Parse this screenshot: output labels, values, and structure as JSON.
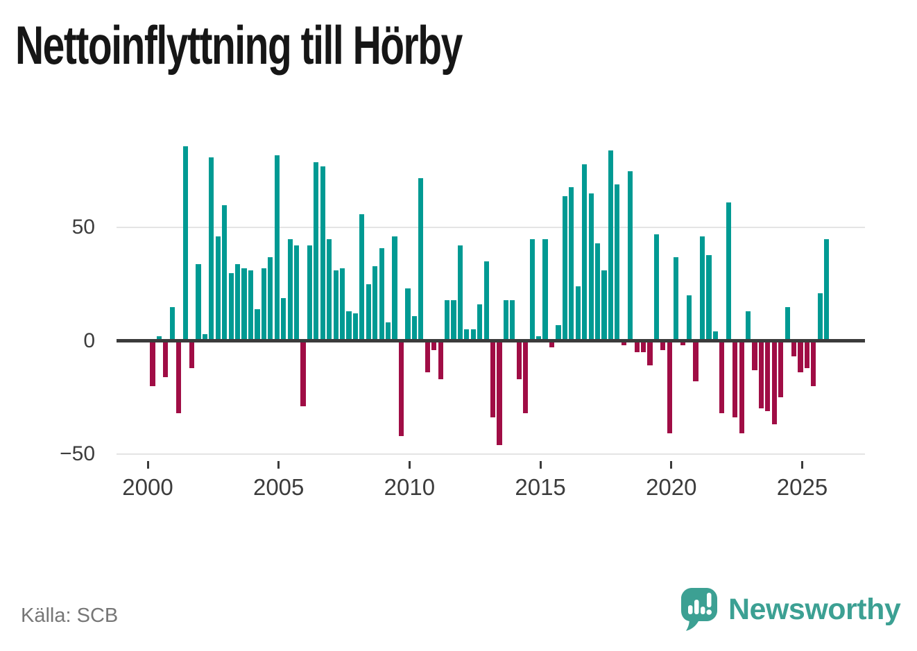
{
  "title": "Nettoinflyttning till Hörby",
  "source": "Källa: SCB",
  "branding": {
    "logo_text": "Newsworthy",
    "logo_color": "#3ca093"
  },
  "chart_data": {
    "type": "bar",
    "title": "Nettoinflyttning till Hörby",
    "frequency": "quarterly",
    "start_period": "2000-Q1",
    "end_period": "2025-Q4",
    "unit": "persons (net migration per quarter)",
    "values": [
      -20,
      2,
      -16,
      15,
      -32,
      86,
      -12,
      34,
      3,
      81,
      46,
      60,
      30,
      34,
      32,
      31,
      14,
      32,
      37,
      82,
      19,
      45,
      42,
      -29,
      42,
      79,
      77,
      45,
      31,
      32,
      13,
      12,
      56,
      25,
      33,
      41,
      8,
      46,
      -42,
      23,
      11,
      72,
      -14,
      -4,
      -17,
      18,
      18,
      42,
      5,
      5,
      16,
      35,
      -34,
      -46,
      18,
      18,
      -17,
      -32,
      45,
      2,
      45,
      -3,
      7,
      64,
      68,
      24,
      78,
      65,
      43,
      31,
      84,
      69,
      -2,
      75,
      -5,
      -5,
      -11,
      47,
      -4,
      -41,
      37,
      -2,
      20,
      -18,
      46,
      38,
      4,
      -32,
      61,
      -34,
      -41,
      13,
      -13,
      -30,
      -31,
      -37,
      -25,
      15,
      -7,
      -14,
      -12,
      -20,
      21,
      45
    ],
    "y_ticks": [
      {
        "label": "50",
        "value": 50
      },
      {
        "label": "0",
        "value": 0
      },
      {
        "label": "−50",
        "value": -50
      }
    ],
    "x_ticks": [
      {
        "label": "2000",
        "year": 2000
      },
      {
        "label": "2005",
        "year": 2005
      },
      {
        "label": "2010",
        "year": 2010
      },
      {
        "label": "2015",
        "year": 2015
      },
      {
        "label": "2020",
        "year": 2020
      },
      {
        "label": "2025",
        "year": 2025
      }
    ],
    "grid_values": [
      50,
      -50
    ],
    "ylim": [
      -51,
      105
    ],
    "colors": {
      "positive": "#009a93",
      "negative": "#a00d45"
    },
    "legend": "none",
    "grid": "horizontal-only"
  }
}
